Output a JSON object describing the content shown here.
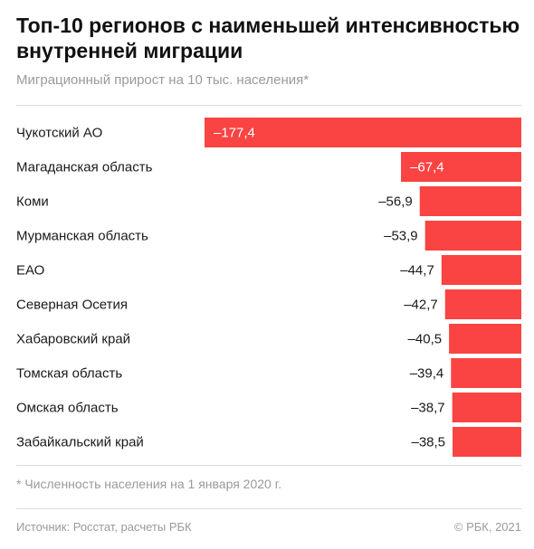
{
  "header": {
    "title": "Топ-10 регионов с наименьшей интенсивностью внутренней миграции",
    "subtitle": "Миграционный прирост на 10 тыс. населения*"
  },
  "footer": {
    "footnote": "* Численность населения на 1 января 2020 г.",
    "source": "Источник: Росстат, расчеты РБК",
    "copyright": "© РБК, 2021"
  },
  "colors": {
    "bar": "#fa4343",
    "inside_label": "#ffffff",
    "label": "#1a1a1a"
  },
  "chart_data": {
    "type": "bar",
    "orientation": "horizontal",
    "categories": [
      "Чукотский АО",
      "Магаданская область",
      "Коми",
      "Мурманская область",
      "ЕАО",
      "Северная Осетия",
      "Хабаровский край",
      "Томская область",
      "Омская область",
      "Забайкальский край"
    ],
    "values": [
      -177.4,
      -67.4,
      -56.9,
      -53.9,
      -44.7,
      -42.7,
      -40.5,
      -39.4,
      -38.7,
      -38.5
    ],
    "value_labels": [
      "–177,4",
      "–67,4",
      "–56,9",
      "–53,9",
      "–44,7",
      "–42,7",
      "–40,5",
      "–39,4",
      "–38,7",
      "–38,5"
    ],
    "xlim": [
      -177.4,
      0
    ],
    "grid": false,
    "legend": "none"
  }
}
